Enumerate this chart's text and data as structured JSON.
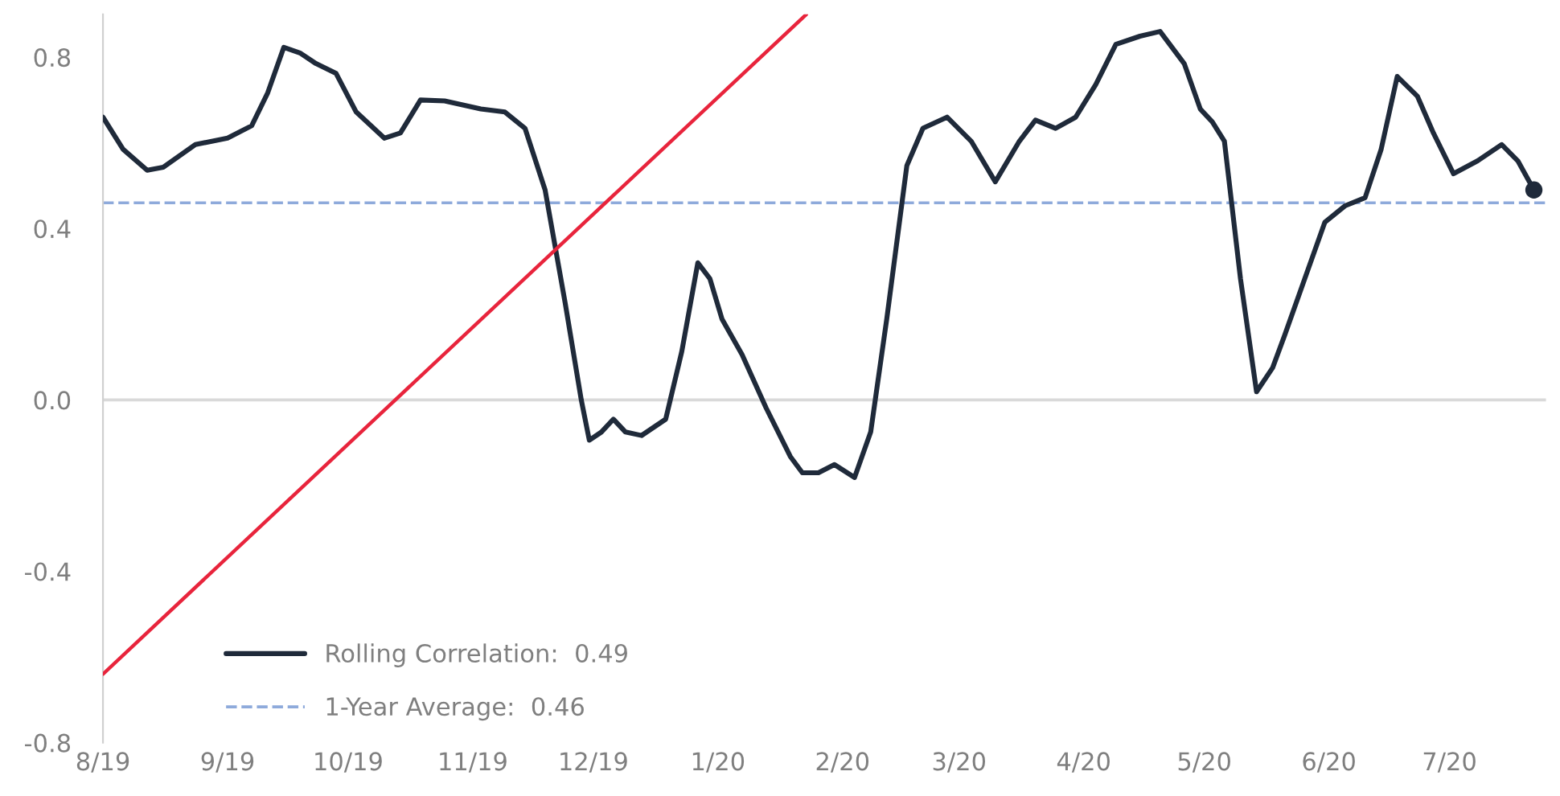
{
  "chart_data": {
    "type": "line",
    "legend": "bottom left",
    "grid": false,
    "line_style": "solid",
    "marker": "none",
    "xlim": [
      "2019-08-01",
      "2020-07-25"
    ],
    "ylim": [
      -0.8,
      0.9
    ],
    "xticks": [
      {
        "value": "2019-08-01",
        "label": "8/19"
      },
      {
        "value": "2019-09-01",
        "label": "9/19"
      },
      {
        "value": "2019-10-01",
        "label": "10/19"
      },
      {
        "value": "2019-11-01",
        "label": "11/19"
      },
      {
        "value": "2019-12-01",
        "label": "12/19"
      },
      {
        "value": "2020-01-01",
        "label": "1/20"
      },
      {
        "value": "2020-02-01",
        "label": "2/20"
      },
      {
        "value": "2020-03-01",
        "label": "3/20"
      },
      {
        "value": "2020-04-01",
        "label": "4/20"
      },
      {
        "value": "2020-05-01",
        "label": "5/20"
      },
      {
        "value": "2020-06-01",
        "label": "6/20"
      },
      {
        "value": "2020-07-01",
        "label": "7/20"
      }
    ],
    "yticks": [
      {
        "value": -0.8,
        "label": "-0.8"
      },
      {
        "value": -0.4,
        "label": "-0.4"
      },
      {
        "value": 0,
        "label": "0.0"
      },
      0.4,
      0.8
    ],
    "series": [
      {
        "name": "Rolling Correlation:  0.49",
        "color": "#1f2a3a",
        "x": [
          "2019-08-01",
          "2019-08-06",
          "2019-08-12",
          "2019-08-16",
          "2019-08-24",
          "2019-09-01",
          "2019-09-07",
          "2019-09-11",
          "2019-09-15",
          "2019-09-19",
          "2019-09-23",
          "2019-09-28",
          "2019-10-03",
          "2019-10-10",
          "2019-10-14",
          "2019-10-19",
          "2019-10-25",
          "2019-11-03",
          "2019-11-09",
          "2019-11-14",
          "2019-11-19",
          "2019-11-24",
          "2019-11-28",
          "2019-11-30",
          "2019-12-03",
          "2019-12-06",
          "2019-12-09",
          "2019-12-13",
          "2019-12-19",
          "2019-12-23",
          "2019-12-27",
          "2019-12-30",
          "2020-01-02",
          "2020-01-07",
          "2020-01-13",
          "2020-01-19",
          "2020-01-22",
          "2020-01-26",
          "2020-01-30",
          "2020-02-04",
          "2020-02-08",
          "2020-02-12",
          "2020-02-17",
          "2020-02-21",
          "2020-02-27",
          "2020-03-04",
          "2020-03-10",
          "2020-03-16",
          "2020-03-20",
          "2020-03-25",
          "2020-03-30",
          "2020-04-04",
          "2020-04-09",
          "2020-04-15",
          "2020-04-20",
          "2020-04-26",
          "2020-04-30",
          "2020-05-03",
          "2020-05-06",
          "2020-05-10",
          "2020-05-14",
          "2020-05-18",
          "2020-05-21",
          "2020-05-26",
          "2020-05-31",
          "2020-06-05",
          "2020-06-10",
          "2020-06-14",
          "2020-06-18",
          "2020-06-23",
          "2020-06-27",
          "2020-07-02",
          "2020-07-08",
          "2020-07-14",
          "2020-07-18",
          "2020-07-22"
        ],
        "values": [
          0.66,
          0.585,
          0.536,
          0.543,
          0.596,
          0.611,
          0.64,
          0.717,
          0.823,
          0.81,
          0.785,
          0.762,
          0.672,
          0.611,
          0.623,
          0.7,
          0.698,
          0.679,
          0.672,
          0.634,
          0.49,
          0.226,
          0.0,
          -0.094,
          -0.075,
          -0.045,
          -0.075,
          -0.083,
          -0.045,
          0.113,
          0.32,
          0.283,
          0.189,
          0.106,
          -0.019,
          -0.132,
          -0.17,
          -0.17,
          -0.151,
          -0.181,
          -0.075,
          0.189,
          0.547,
          0.634,
          0.66,
          0.604,
          0.509,
          0.604,
          0.653,
          0.634,
          0.66,
          0.736,
          0.83,
          0.849,
          0.86,
          0.785,
          0.679,
          0.649,
          0.604,
          0.283,
          0.019,
          0.075,
          0.151,
          0.283,
          0.415,
          0.453,
          0.472,
          0.585,
          0.755,
          0.709,
          0.623,
          0.528,
          0.558,
          0.596,
          0.558,
          0.49
        ]
      },
      {
        "type": "scatter",
        "marker": "circle",
        "color": "#1f2a3a",
        "x": [
          "2020-07-22"
        ],
        "values": [
          0.49
        ]
      },
      {
        "color": "#e8243c",
        "x": [
          "2019-08-01",
          "2020-01-23"
        ],
        "values": [
          -0.64,
          0.9
        ]
      }
    ],
    "ref_lines": [
      {
        "axis": "y",
        "value": 0,
        "color": "#d9d9d9",
        "line_style": "solid"
      },
      {
        "axis": "y",
        "value": 0.46,
        "label": "1-Year Average:  0.46",
        "color": "#8eaadb",
        "line_style": "dashed"
      }
    ]
  }
}
